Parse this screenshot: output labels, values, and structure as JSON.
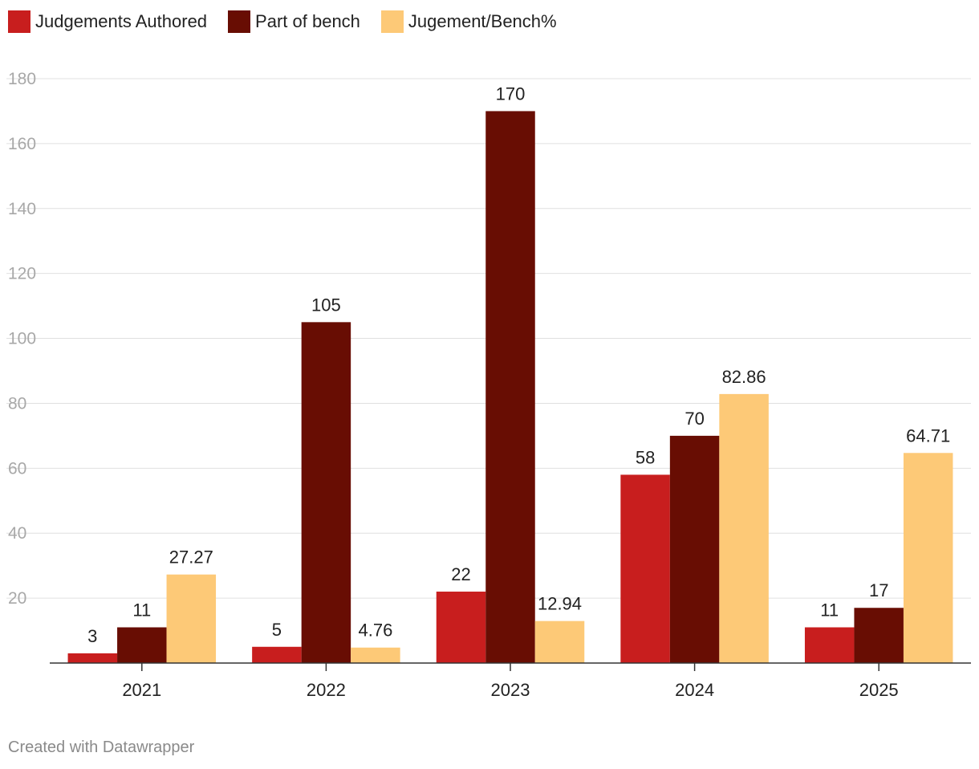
{
  "chart_data": {
    "type": "bar",
    "categories": [
      "2021",
      "2022",
      "2023",
      "2024",
      "2025"
    ],
    "series": [
      {
        "name": "Judgements Authored",
        "color": "#c81e1e",
        "values": [
          3,
          5,
          22,
          58,
          11
        ],
        "labels": [
          "3",
          "5",
          "22",
          "58",
          "11"
        ]
      },
      {
        "name": "Part of bench",
        "color": "#680d03",
        "values": [
          11,
          105,
          170,
          70,
          17
        ],
        "labels": [
          "11",
          "105",
          "170",
          "70",
          "17"
        ]
      },
      {
        "name": "Jugement/Bench%",
        "color": "#fdc977",
        "values": [
          27.27,
          4.76,
          12.94,
          82.86,
          64.71
        ],
        "labels": [
          "27.27",
          "4.76",
          "12.94",
          "82.86",
          "64.71"
        ]
      }
    ],
    "ylim": [
      0,
      180
    ],
    "yticks": [
      20,
      40,
      60,
      80,
      100,
      120,
      140,
      160,
      180
    ],
    "grid": true,
    "legend": "top-left"
  },
  "footer": {
    "text": "Created with Datawrapper"
  }
}
